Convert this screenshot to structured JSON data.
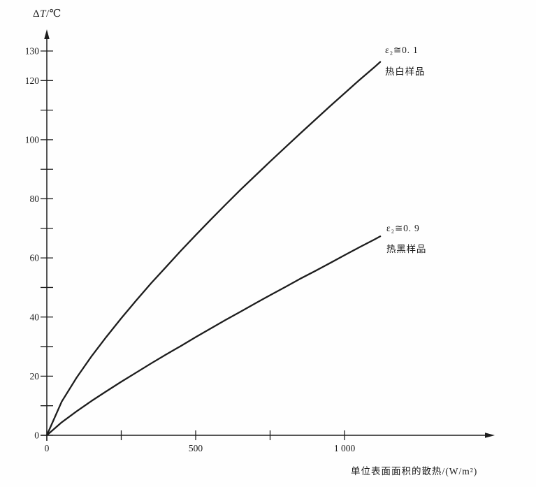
{
  "page": {
    "background_color": "#fefefe",
    "ink_color": "#1d1d1d"
  },
  "chart_data": {
    "type": "line",
    "title": "",
    "ylabel": "ΔT/℃",
    "ylabel_parts": {
      "delta": "Δ",
      "symbol": "T",
      "unit": "/℃"
    },
    "xlabel": "单位表面面积的散热/(W/m²)",
    "grid": false,
    "legend_position": "inline-annotations",
    "x_axis": {
      "range": [
        0,
        1500
      ],
      "ticks": [
        0,
        250,
        500,
        750,
        1000
      ],
      "tick_labels": [
        {
          "value": 0,
          "label": "0"
        },
        {
          "value": 500,
          "label": "500"
        },
        {
          "value": 1000,
          "label": "1 000"
        }
      ]
    },
    "y_axis": {
      "range": [
        0,
        137
      ],
      "ticks": [
        0,
        10,
        20,
        30,
        40,
        50,
        60,
        70,
        80,
        90,
        100,
        110,
        120,
        130
      ],
      "labeled_ticks": [
        0,
        20,
        40,
        60,
        80,
        100,
        120,
        130
      ],
      "origin_label": "0"
    },
    "series": [
      {
        "key": "hot-white-sample",
        "name": "热白样品",
        "emissivity_label": "ε₂≅0. 1",
        "points": [
          [
            0,
            0
          ],
          [
            50,
            11.4
          ],
          [
            100,
            19.5
          ],
          [
            150,
            26.7
          ],
          [
            200,
            33.3
          ],
          [
            250,
            39.6
          ],
          [
            300,
            45.6
          ],
          [
            350,
            51.4
          ],
          [
            400,
            56.9
          ],
          [
            450,
            62.4
          ],
          [
            500,
            67.7
          ],
          [
            550,
            72.9
          ],
          [
            600,
            78.0
          ],
          [
            650,
            83.0
          ],
          [
            700,
            87.8
          ],
          [
            750,
            92.6
          ],
          [
            800,
            97.3
          ],
          [
            850,
            102.0
          ],
          [
            900,
            106.6
          ],
          [
            950,
            111.2
          ],
          [
            1000,
            115.7
          ],
          [
            1050,
            120.2
          ],
          [
            1100,
            124.5
          ],
          [
            1120,
            126.3
          ]
        ]
      },
      {
        "key": "hot-black-sample",
        "name": "热黑样品",
        "emissivity_label": "ε₂≅0. 9",
        "points": [
          [
            0,
            0
          ],
          [
            50,
            4.4
          ],
          [
            100,
            8.1
          ],
          [
            150,
            11.6
          ],
          [
            200,
            14.9
          ],
          [
            250,
            18.1
          ],
          [
            300,
            21.2
          ],
          [
            350,
            24.3
          ],
          [
            400,
            27.3
          ],
          [
            450,
            30.2
          ],
          [
            500,
            33.2
          ],
          [
            550,
            36.1
          ],
          [
            600,
            39.0
          ],
          [
            650,
            41.8
          ],
          [
            700,
            44.6
          ],
          [
            750,
            47.4
          ],
          [
            800,
            50.1
          ],
          [
            850,
            52.9
          ],
          [
            900,
            55.5
          ],
          [
            950,
            58.2
          ],
          [
            1000,
            60.9
          ],
          [
            1050,
            63.6
          ],
          [
            1100,
            66.2
          ],
          [
            1120,
            67.3
          ]
        ]
      }
    ]
  }
}
